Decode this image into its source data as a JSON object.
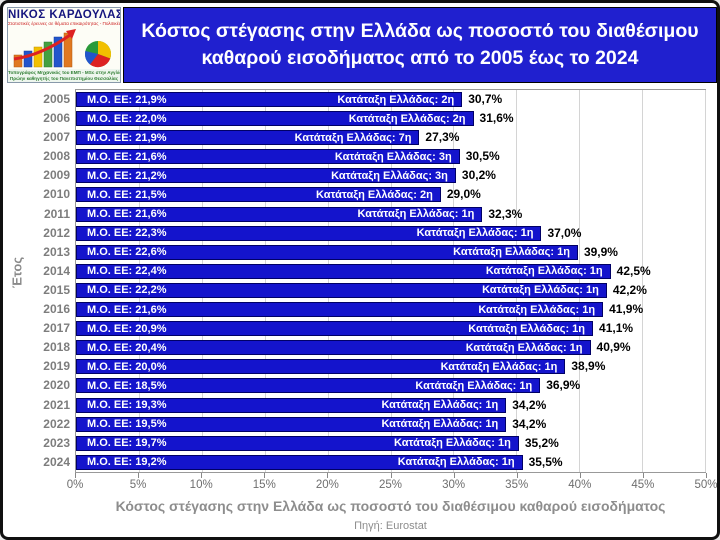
{
  "header": {
    "logo": {
      "name": "ΝΙΚΟΣ ΚΑΡΔΟΥΛΑΣ",
      "subtitle": "Στατιστικές έρευνες σε θέματα επικαιρότητας - Πολιτικές Αναλύσεις",
      "footer_line1": "Τοπογράφος Μηχανικός του ΕΜΠ - MSc στην Αγγλία - Σχης ε.α.",
      "footer_line2": "Πρώην καθηγητής του Πανεπιστημίου Θεσσαλίας"
    },
    "title": "Κόστος στέγασης στην Ελλάδα ως ποσοστό του διαθέσιμου καθαρού εισοδήματος από το 2005 έως το 2024"
  },
  "chart_data": {
    "type": "bar",
    "orientation": "horizontal",
    "title": "Κόστος στέγασης στην Ελλάδα ως ποσοστό του διαθέσιμου καθαρού εισοδήματος από το 2005 έως το 2024",
    "ylabel": "Έτος",
    "xlabel": "Κόστος στέγασης στην Ελλάδα ως ποσοστό του διαθέσιμου καθαρού εισοδήματος",
    "source": "Πηγή: Eurostat",
    "xlim": [
      0,
      50
    ],
    "xticks": [
      "0%",
      "5%",
      "10%",
      "15%",
      "20%",
      "25%",
      "30%",
      "35%",
      "40%",
      "45%",
      "50%"
    ],
    "grid": true,
    "legend": "none",
    "bar_color": "#1414cc",
    "categories": [
      "2005",
      "2006",
      "2007",
      "2008",
      "2009",
      "2010",
      "2011",
      "2012",
      "2013",
      "2014",
      "2015",
      "2016",
      "2017",
      "2018",
      "2019",
      "2020",
      "2021",
      "2022",
      "2023",
      "2024"
    ],
    "values": [
      30.7,
      31.6,
      27.3,
      30.5,
      30.2,
      29.0,
      32.3,
      37.0,
      39.9,
      42.5,
      42.2,
      41.9,
      41.1,
      40.9,
      38.9,
      36.9,
      34.2,
      34.2,
      35.2,
      35.5
    ],
    "eu_average_values": [
      21.9,
      22.0,
      21.9,
      21.6,
      21.2,
      21.5,
      21.6,
      22.3,
      22.6,
      22.4,
      22.2,
      21.6,
      20.9,
      20.4,
      20.0,
      18.5,
      19.3,
      19.5,
      19.7,
      19.2
    ],
    "greece_rank": [
      "2η",
      "2η",
      "7η",
      "3η",
      "3η",
      "2η",
      "1η",
      "1η",
      "1η",
      "1η",
      "1η",
      "1η",
      "1η",
      "1η",
      "1η",
      "1η",
      "1η",
      "1η",
      "1η",
      "1η"
    ],
    "rows": [
      {
        "year": "2005",
        "eu_label": "Μ.Ο. ΕΕ: 21,9%",
        "rank_label": "Κατάταξη Ελλάδας: 2η",
        "value_label": "30,7%",
        "value": 30.7
      },
      {
        "year": "2006",
        "eu_label": "Μ.Ο. ΕΕ: 22,0%",
        "rank_label": "Κατάταξη Ελλάδας: 2η",
        "value_label": "31,6%",
        "value": 31.6
      },
      {
        "year": "2007",
        "eu_label": "Μ.Ο. ΕΕ: 21,9%",
        "rank_label": "Κατάταξη Ελλάδας: 7η",
        "value_label": "27,3%",
        "value": 27.3
      },
      {
        "year": "2008",
        "eu_label": "Μ.Ο. ΕΕ: 21,6%",
        "rank_label": "Κατάταξη Ελλάδας: 3η",
        "value_label": "30,5%",
        "value": 30.5
      },
      {
        "year": "2009",
        "eu_label": "Μ.Ο. ΕΕ: 21,2%",
        "rank_label": "Κατάταξη Ελλάδας: 3η",
        "value_label": "30,2%",
        "value": 30.2
      },
      {
        "year": "2010",
        "eu_label": "Μ.Ο. ΕΕ: 21,5%",
        "rank_label": "Κατάταξη Ελλάδας: 2η",
        "value_label": "29,0%",
        "value": 29.0
      },
      {
        "year": "2011",
        "eu_label": "Μ.Ο. ΕΕ: 21,6%",
        "rank_label": "Κατάταξη Ελλάδας: 1η",
        "value_label": "32,3%",
        "value": 32.3
      },
      {
        "year": "2012",
        "eu_label": "Μ.Ο. ΕΕ: 22,3%",
        "rank_label": "Κατάταξη Ελλάδας: 1η",
        "value_label": "37,0%",
        "value": 37.0
      },
      {
        "year": "2013",
        "eu_label": "Μ.Ο. ΕΕ: 22,6%",
        "rank_label": "Κατάταξη Ελλάδας: 1η",
        "value_label": "39,9%",
        "value": 39.9
      },
      {
        "year": "2014",
        "eu_label": "Μ.Ο. ΕΕ: 22,4%",
        "rank_label": "Κατάταξη Ελλάδας: 1η",
        "value_label": "42,5%",
        "value": 42.5
      },
      {
        "year": "2015",
        "eu_label": "Μ.Ο. ΕΕ: 22,2%",
        "rank_label": "Κατάταξη Ελλάδας: 1η",
        "value_label": "42,2%",
        "value": 42.2
      },
      {
        "year": "2016",
        "eu_label": "Μ.Ο. ΕΕ: 21,6%",
        "rank_label": "Κατάταξη Ελλάδας: 1η",
        "value_label": "41,9%",
        "value": 41.9
      },
      {
        "year": "2017",
        "eu_label": "Μ.Ο. ΕΕ: 20,9%",
        "rank_label": "Κατάταξη Ελλάδας: 1η",
        "value_label": "41,1%",
        "value": 41.1
      },
      {
        "year": "2018",
        "eu_label": "Μ.Ο. ΕΕ: 20,4%",
        "rank_label": "Κατάταξη Ελλάδας: 1η",
        "value_label": "40,9%",
        "value": 40.9
      },
      {
        "year": "2019",
        "eu_label": "Μ.Ο. ΕΕ: 20,0%",
        "rank_label": "Κατάταξη Ελλάδας: 1η",
        "value_label": "38,9%",
        "value": 38.9
      },
      {
        "year": "2020",
        "eu_label": "Μ.Ο. ΕΕ: 18,5%",
        "rank_label": "Κατάταξη Ελλάδας: 1η",
        "value_label": "36,9%",
        "value": 36.9
      },
      {
        "year": "2021",
        "eu_label": "Μ.Ο. ΕΕ: 19,3%",
        "rank_label": "Κατάταξη Ελλάδας: 1η",
        "value_label": "34,2%",
        "value": 34.2
      },
      {
        "year": "2022",
        "eu_label": "Μ.Ο. ΕΕ: 19,5%",
        "rank_label": "Κατάταξη Ελλάδας: 1η",
        "value_label": "34,2%",
        "value": 34.2
      },
      {
        "year": "2023",
        "eu_label": "Μ.Ο. ΕΕ: 19,7%",
        "rank_label": "Κατάταξη Ελλάδας: 1η",
        "value_label": "35,2%",
        "value": 35.2
      },
      {
        "year": "2024",
        "eu_label": "Μ.Ο. ΕΕ: 19,2%",
        "rank_label": "Κατάταξη Ελλάδας: 1η",
        "value_label": "35,5%",
        "value": 35.5
      }
    ]
  }
}
